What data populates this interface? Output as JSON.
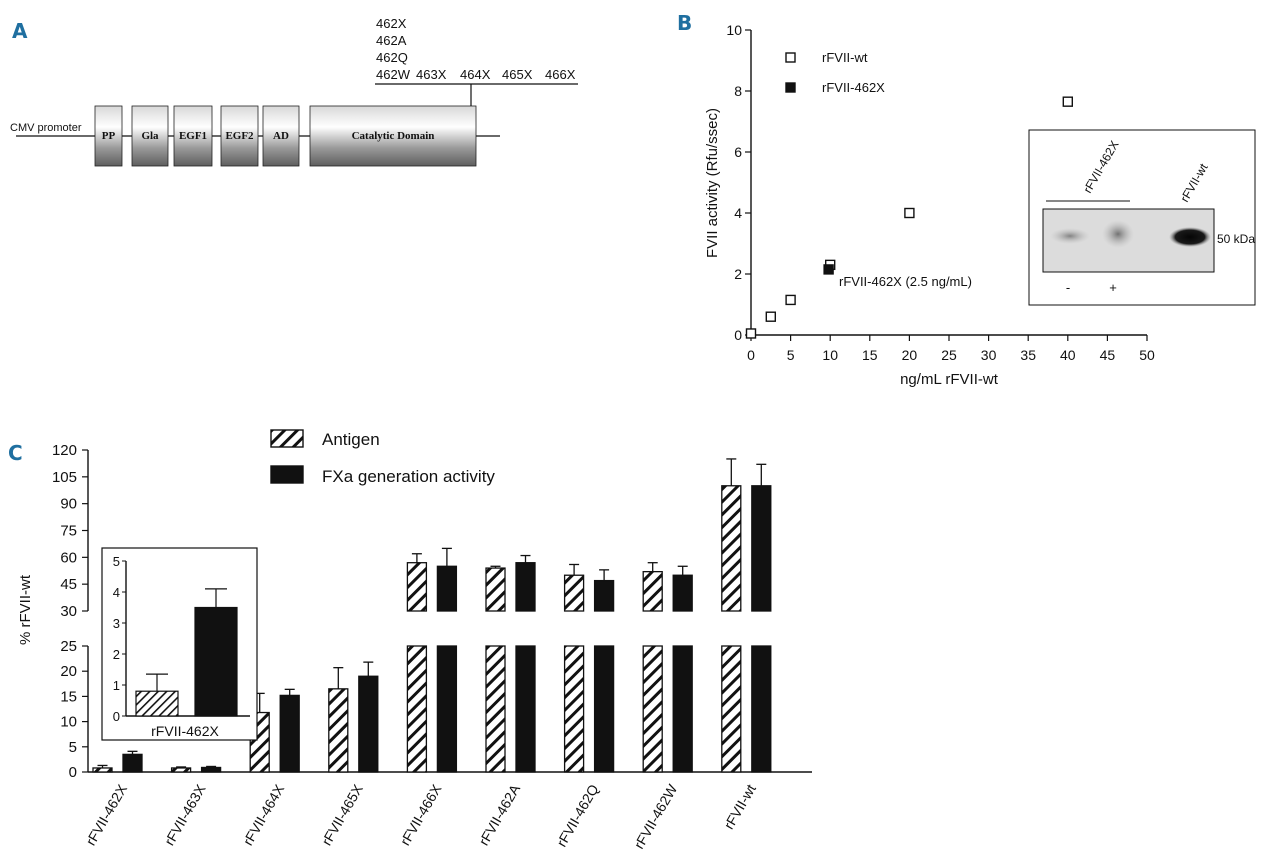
{
  "panel_a": {
    "label": "A",
    "promoter": "CMV promoter",
    "domains": [
      "PP",
      "Gla",
      "EGF1",
      "EGF2",
      "AD",
      "Catalytic Domain"
    ],
    "mutations_stack": [
      "462X",
      "462A",
      "462Q",
      "462W"
    ],
    "mutations_row": [
      "463X",
      "464X",
      "465X",
      "466X"
    ]
  },
  "panel_b": {
    "label": "B",
    "inset_blot": {
      "lane_labels": [
        "rFVII-462X",
        "rFVII-wt"
      ],
      "marker": "50 kDa",
      "treatment_labels": [
        "-",
        "+"
      ]
    }
  },
  "panel_c": {
    "label": "C",
    "inset_category": "rFVII-462X"
  },
  "chart_data": [
    {
      "type": "scatter",
      "panel": "B",
      "xlabel": "ng/mL rFVII-wt",
      "ylabel": "FVII activity (Rfu/ssec)",
      "xlim": [
        0,
        50
      ],
      "ylim": [
        0,
        10
      ],
      "xticks": [
        0,
        5,
        10,
        15,
        20,
        25,
        30,
        35,
        40,
        45,
        50
      ],
      "yticks": [
        0,
        2,
        4,
        6,
        8,
        10
      ],
      "series": [
        {
          "name": "rFVII-wt",
          "marker": "open-square",
          "points": [
            [
              0,
              0.05
            ],
            [
              2.5,
              0.6
            ],
            [
              5,
              1.15
            ],
            [
              10,
              2.3
            ],
            [
              20,
              4.0
            ],
            [
              40,
              7.65
            ]
          ]
        },
        {
          "name": "rFVII-462X",
          "marker": "filled-square",
          "points": [
            [
              9.8,
              2.15
            ]
          ]
        }
      ],
      "annotation": "rFVII-462X (2.5 ng/mL)",
      "legend": "top-left"
    },
    {
      "type": "bar",
      "panel": "C",
      "ylabel": "% rFVII-wt",
      "broken_axis": {
        "lower_range": [
          0,
          25
        ],
        "upper_range": [
          30,
          120
        ]
      },
      "yticks_lower": [
        0,
        5,
        10,
        15,
        20,
        25
      ],
      "yticks_upper": [
        30,
        45,
        60,
        75,
        90,
        105,
        120
      ],
      "categories": [
        "rFVII-462X",
        "rFVII-463X",
        "rFVII-464X",
        "rFVII-465X",
        "rFVII-466X",
        "rFVII-462A",
        "rFVII-462Q",
        "rFVII-462W",
        "rFVII-wt"
      ],
      "series": [
        {
          "name": "Antigen",
          "pattern": "hatched",
          "values": [
            0.8,
            0.8,
            11.8,
            16.5,
            57,
            54,
            50,
            52,
            100
          ],
          "errors": [
            0.5,
            0.2,
            3.8,
            4.2,
            5,
            1,
            6,
            5,
            15
          ]
        },
        {
          "name": "FXa generation activity",
          "pattern": "solid",
          "values": [
            3.5,
            0.9,
            15.2,
            19,
            55,
            57,
            47,
            50,
            100
          ],
          "errors": [
            0.6,
            0.2,
            1.2,
            2.8,
            10,
            4,
            6,
            5,
            12
          ]
        }
      ],
      "legend": "top"
    },
    {
      "type": "bar",
      "panel": "C-inset",
      "categories": [
        "rFVII-462X"
      ],
      "ylim": [
        0,
        5
      ],
      "yticks": [
        0,
        1,
        2,
        3,
        4,
        5
      ],
      "series": [
        {
          "name": "Antigen",
          "pattern": "hatched",
          "values": [
            0.8
          ],
          "errors": [
            0.55
          ]
        },
        {
          "name": "FXa generation activity",
          "pattern": "solid",
          "values": [
            3.5
          ],
          "errors": [
            0.6
          ]
        }
      ]
    }
  ]
}
